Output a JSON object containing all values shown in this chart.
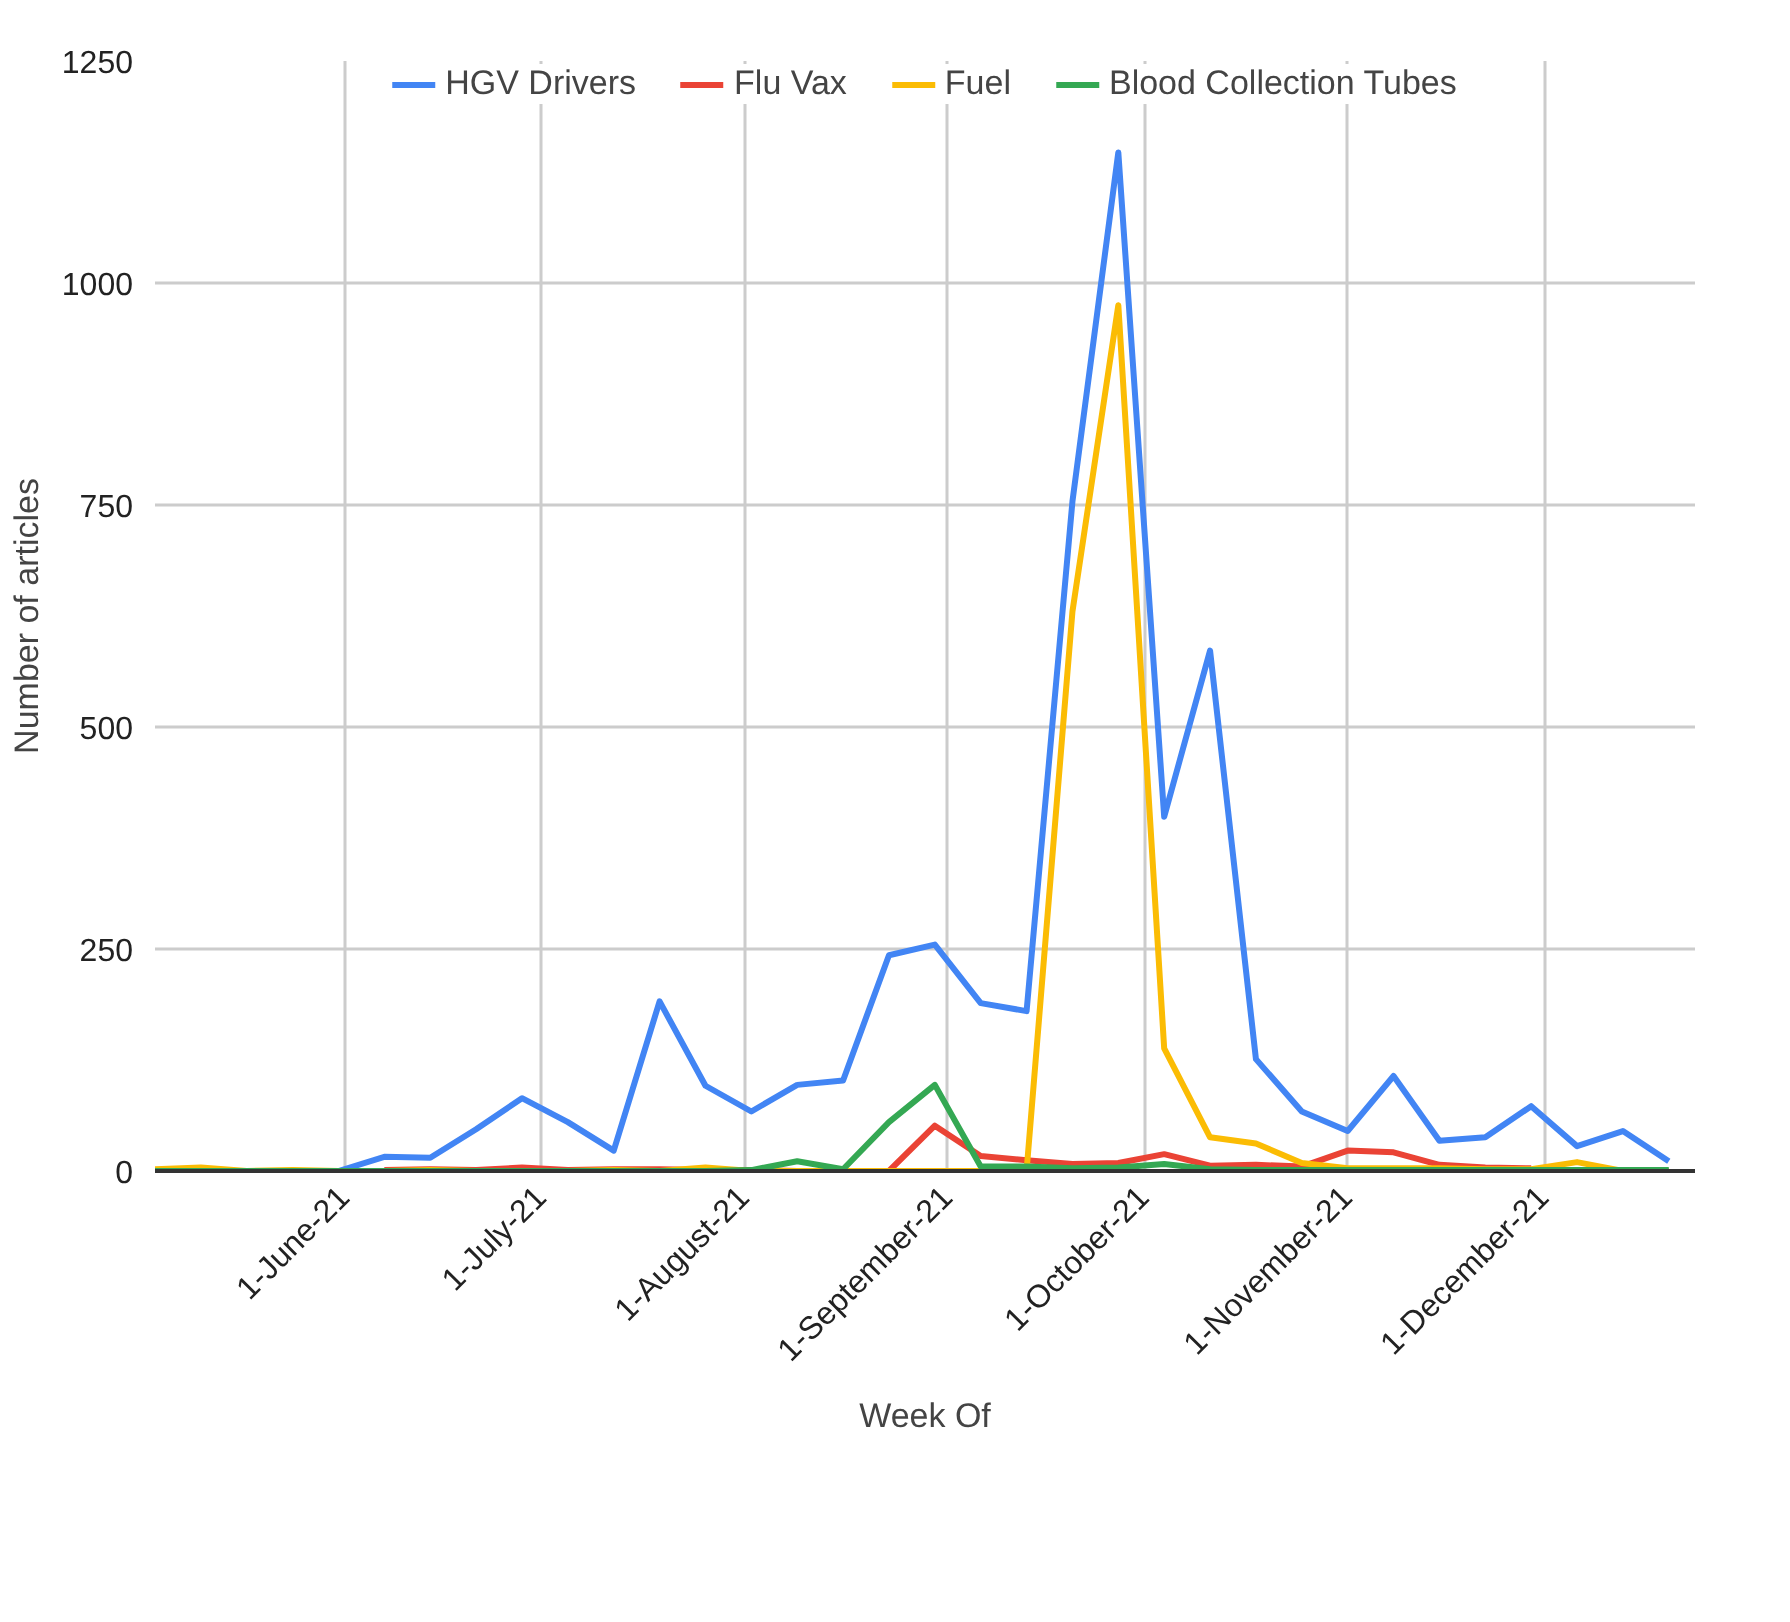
{
  "chart_data": {
    "type": "line",
    "xlabel": "Week Of",
    "ylabel": "Number of articles",
    "x": [
      "2021-05-03",
      "2021-05-10",
      "2021-05-17",
      "2021-05-24",
      "2021-05-31",
      "2021-06-07",
      "2021-06-14",
      "2021-06-21",
      "2021-06-28",
      "2021-07-05",
      "2021-07-12",
      "2021-07-19",
      "2021-07-26",
      "2021-08-02",
      "2021-08-09",
      "2021-08-16",
      "2021-08-23",
      "2021-08-30",
      "2021-09-06",
      "2021-09-13",
      "2021-09-20",
      "2021-09-27",
      "2021-10-04",
      "2021-10-11",
      "2021-10-18",
      "2021-10-25",
      "2021-11-01",
      "2021-11-08",
      "2021-11-15",
      "2021-11-22",
      "2021-11-29",
      "2021-12-06",
      "2021-12-13",
      "2021-12-20"
    ],
    "series": [
      {
        "name": "HGV Drivers",
        "color": "#4285f4",
        "values": [
          null,
          null,
          null,
          0,
          0,
          16,
          15,
          47,
          82,
          55,
          23,
          191,
          96,
          67,
          97,
          102,
          243,
          255,
          189,
          180,
          754,
          1147,
          399,
          586,
          126,
          67,
          45,
          107,
          34,
          38,
          73,
          28,
          45,
          11
        ]
      },
      {
        "name": "Flu Vax",
        "color": "#ea4335",
        "values": [
          null,
          null,
          null,
          null,
          null,
          1,
          2,
          1,
          4,
          1,
          2,
          2,
          1,
          1,
          0,
          0,
          0,
          51,
          17,
          12,
          8,
          9,
          19,
          6,
          7,
          5,
          23,
          21,
          7,
          4,
          3,
          null,
          null,
          null
        ]
      },
      {
        "name": "Fuel",
        "color": "#fbbc04",
        "values": [
          2,
          4,
          0,
          1,
          0,
          0,
          1,
          0,
          0,
          0,
          1,
          0,
          4,
          0,
          0,
          0,
          0,
          0,
          0,
          0,
          630,
          975,
          138,
          38,
          31,
          9,
          3,
          3,
          3,
          2,
          2,
          10,
          0,
          0
        ]
      },
      {
        "name": "Blood Collection Tubes",
        "color": "#34a853",
        "values": [
          0,
          0,
          0,
          0,
          0,
          0,
          0,
          0,
          0,
          0,
          0,
          0,
          0,
          1,
          11,
          2,
          55,
          97,
          5,
          5,
          3,
          4,
          8,
          2,
          1,
          1,
          1,
          1,
          1,
          1,
          1,
          1,
          1,
          1
        ]
      }
    ],
    "xlim": [
      "2021-05-03",
      "2021-12-24"
    ],
    "xticks": [
      {
        "value": "2021-06-01",
        "label": "1-June-21"
      },
      {
        "value": "2021-07-01",
        "label": "1-July-21"
      },
      {
        "value": "2021-08-01",
        "label": "1-August-21"
      },
      {
        "value": "2021-09-01",
        "label": "1-September-21"
      },
      {
        "value": "2021-10-01",
        "label": "1-October-21"
      },
      {
        "value": "2021-11-01",
        "label": "1-November-21"
      },
      {
        "value": "2021-12-01",
        "label": "1-December-21"
      }
    ],
    "ylim": [
      0,
      1250
    ],
    "yticks": [
      0,
      250,
      500,
      750,
      1000,
      1250
    ],
    "grid": true,
    "legend": "top",
    "marker": "none",
    "line_style": "solid"
  }
}
